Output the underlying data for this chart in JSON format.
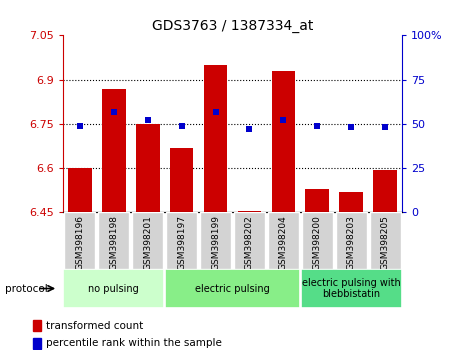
{
  "title": "GDS3763 / 1387334_at",
  "samples": [
    "GSM398196",
    "GSM398198",
    "GSM398201",
    "GSM398197",
    "GSM398199",
    "GSM398202",
    "GSM398204",
    "GSM398200",
    "GSM398203",
    "GSM398205"
  ],
  "red_values": [
    6.6,
    6.87,
    6.75,
    6.67,
    6.95,
    6.455,
    6.93,
    6.53,
    6.52,
    6.595
  ],
  "blue_values": [
    49,
    57,
    52,
    49,
    57,
    47,
    52,
    49,
    48,
    48
  ],
  "ylim_left": [
    6.45,
    7.05
  ],
  "ylim_right": [
    0,
    100
  ],
  "yticks_left": [
    6.45,
    6.6,
    6.75,
    6.9,
    7.05
  ],
  "yticks_right": [
    0,
    25,
    50,
    75,
    100
  ],
  "yticklabels_right": [
    "0",
    "25",
    "50",
    "75",
    "100%"
  ],
  "hlines": [
    6.6,
    6.75,
    6.9
  ],
  "groups": [
    {
      "label": "no pulsing",
      "start": 0,
      "end": 3,
      "color": "#ccffcc"
    },
    {
      "label": "electric pulsing",
      "start": 3,
      "end": 7,
      "color": "#88ee88"
    },
    {
      "label": "electric pulsing with\nblebbistatin",
      "start": 7,
      "end": 10,
      "color": "#55dd88"
    }
  ],
  "legend_items": [
    {
      "color": "#cc0000",
      "label": "transformed count"
    },
    {
      "color": "#0000cc",
      "label": "percentile rank within the sample"
    }
  ],
  "protocol_label": "protocol",
  "bar_color": "#cc0000",
  "dot_color": "#0000cc",
  "background_color": "#ffffff",
  "bar_bottom": 6.45,
  "bar_width": 0.7,
  "label_box_color": "#d3d3d3",
  "title_fontsize": 10,
  "tick_fontsize": 8,
  "label_fontsize": 6.5,
  "group_fontsize": 7
}
